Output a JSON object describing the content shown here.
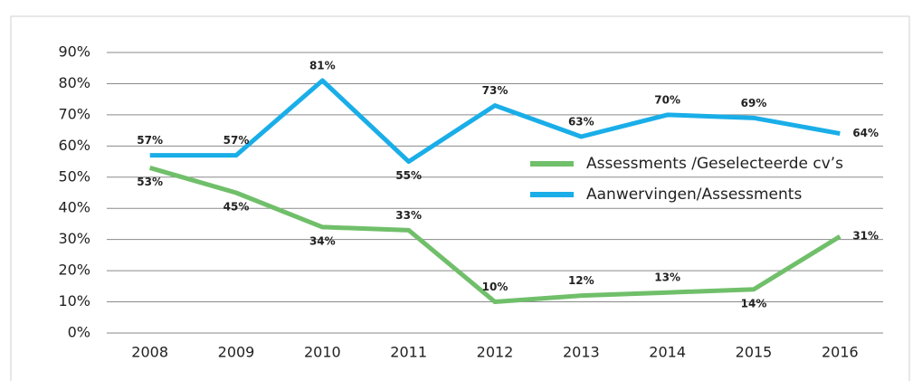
{
  "chart_data": {
    "type": "line",
    "categories": [
      "2008",
      "2009",
      "2010",
      "2011",
      "2012",
      "2013",
      "2014",
      "2015",
      "2016"
    ],
    "series": [
      {
        "name": "Assessments /Geselecteerde cv’s",
        "color": "#70bf6a",
        "values": [
          53,
          45,
          34,
          33,
          10,
          12,
          13,
          14,
          31
        ],
        "value_labels": [
          "53%",
          "45%",
          "34%",
          "33%",
          "10%",
          "12%",
          "13%",
          "14%",
          "31%"
        ]
      },
      {
        "name": "Aanwervingen/Assessments",
        "color": "#1aaee8",
        "values": [
          57,
          57,
          81,
          55,
          73,
          63,
          70,
          69,
          64
        ],
        "value_labels": [
          "57%",
          "57%",
          "81%",
          "55%",
          "73%",
          "63%",
          "70%",
          "69%",
          "64%"
        ]
      }
    ],
    "ylim": [
      0,
      90
    ],
    "yticks": [
      {
        "value": 0,
        "label": "0%"
      },
      {
        "value": 10,
        "label": "10%"
      },
      {
        "value": 20,
        "label": "20%"
      },
      {
        "value": 30,
        "label": "30%"
      },
      {
        "value": 40,
        "label": "40%"
      },
      {
        "value": 50,
        "label": "50%"
      },
      {
        "value": 60,
        "label": "60%"
      },
      {
        "value": 70,
        "label": "70%"
      },
      {
        "value": 80,
        "label": "80%"
      },
      {
        "value": 90,
        "label": "90%"
      }
    ],
    "grid": true,
    "legend": "center right"
  }
}
